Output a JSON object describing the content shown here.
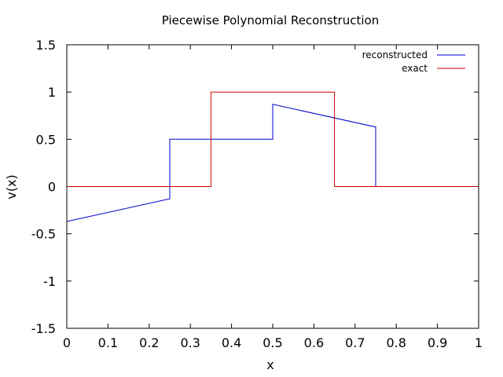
{
  "chart_data": {
    "type": "line",
    "title": "Piecewise Polynomial Reconstruction",
    "xlabel": "x",
    "ylabel": "v(x)",
    "xlim": [
      0,
      1
    ],
    "ylim": [
      -1.5,
      1.5
    ],
    "xticks": [
      0,
      0.1,
      0.2,
      0.3,
      0.4,
      0.5,
      0.6,
      0.7,
      0.8,
      0.9,
      1
    ],
    "xtick_labels": [
      "0",
      "0.1",
      "0.2",
      "0.3",
      "0.4",
      "0.5",
      "0.6",
      "0.7",
      "0.8",
      "0.9",
      "1"
    ],
    "yticks": [
      -1.5,
      -1,
      -0.5,
      0,
      0.5,
      1,
      1.5
    ],
    "ytick_labels": [
      "-1.5",
      "-1",
      "-0.5",
      "0",
      "0.5",
      "1",
      "1.5"
    ],
    "grid": false,
    "legend": "top-right",
    "series": [
      {
        "name": "reconstructed",
        "color": "#0000cc",
        "x": [
          0,
          0.25,
          0.25,
          0.5,
          0.5,
          0.5,
          0.75,
          0.75,
          0.75,
          0.75,
          1.0,
          1.0
        ],
        "y": [
          -0.37,
          -0.13,
          0.5,
          0.5,
          0.75,
          0.87,
          0.63,
          0.33,
          0.0,
          0.0,
          0.0,
          0.25
        ]
      },
      {
        "name": "exact",
        "color": "#cc0000",
        "x": [
          0,
          0.35,
          0.35,
          0.65,
          0.65,
          1.0
        ],
        "y": [
          0,
          0,
          1,
          1,
          0,
          0
        ]
      }
    ]
  }
}
